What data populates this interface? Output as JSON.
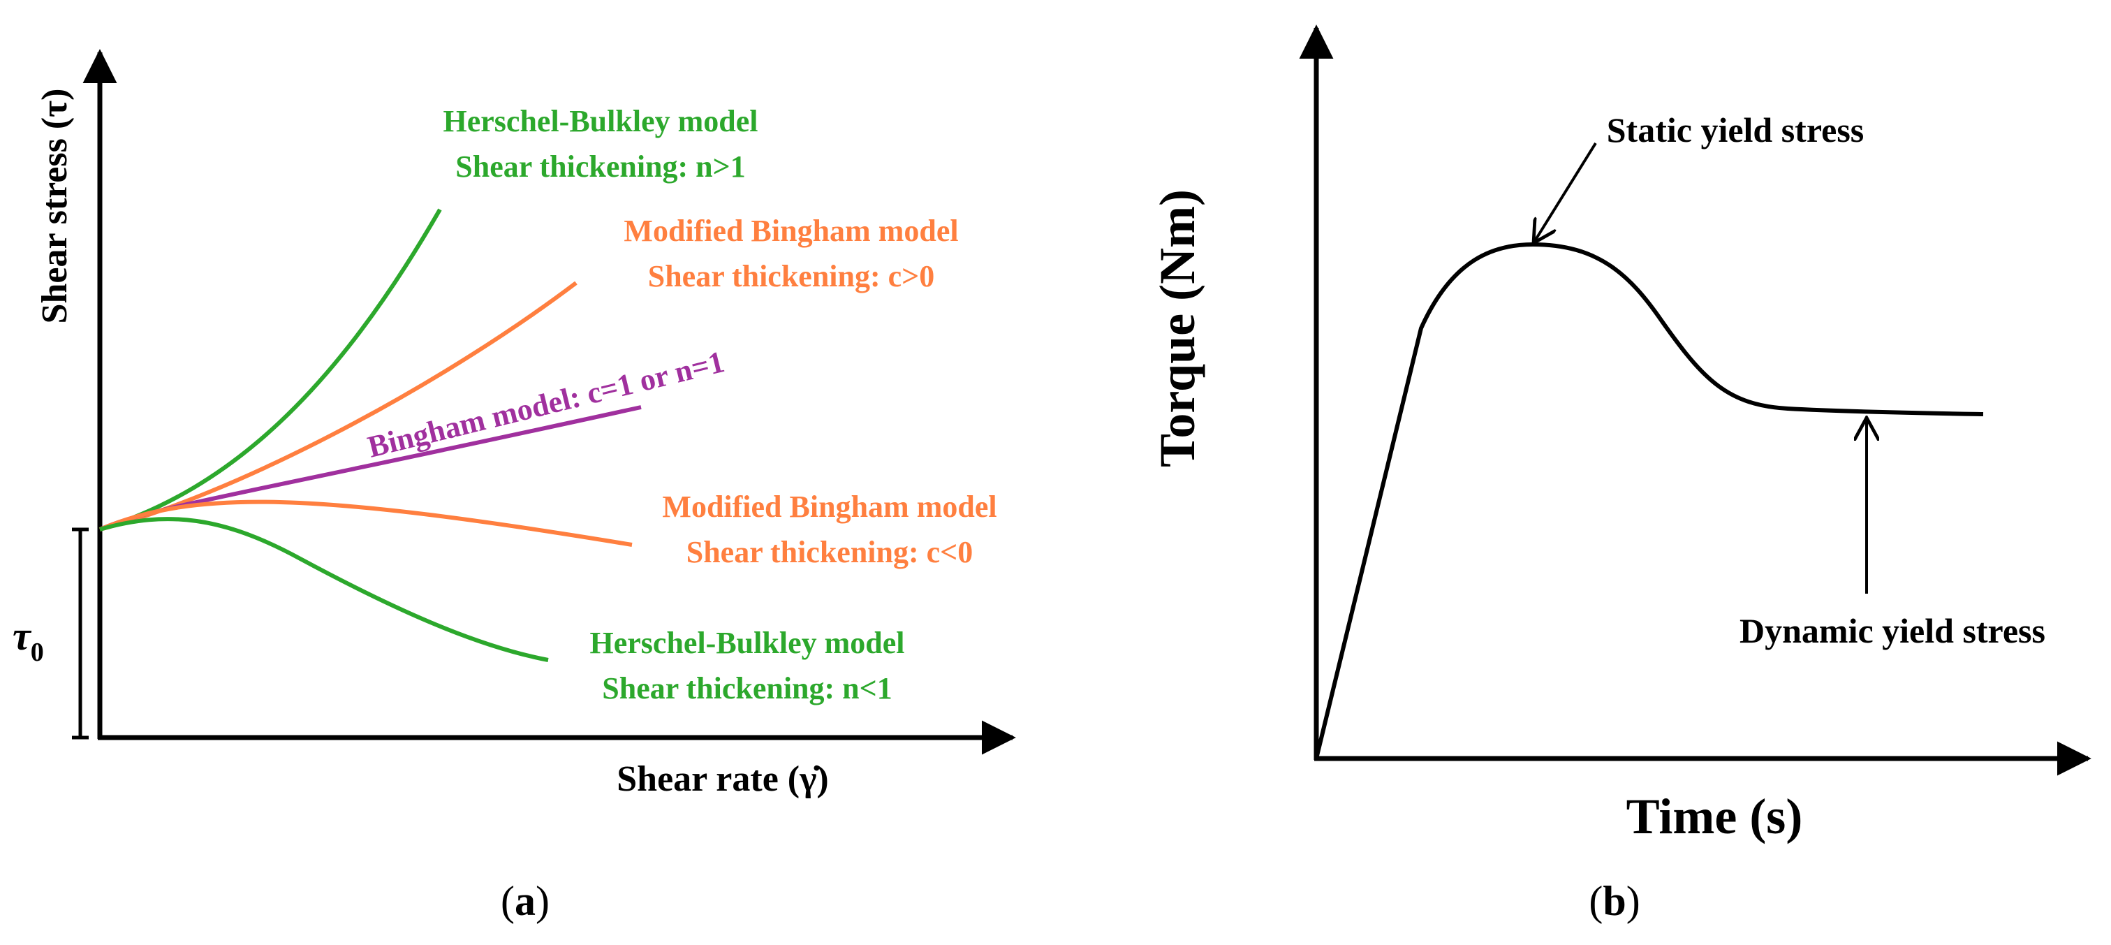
{
  "colors": {
    "green": "#2CA82C",
    "orange": "#FF7F3F",
    "purple": "#A0309E",
    "axis": "#000000"
  },
  "panel_a": {
    "label_open": "(",
    "label_letter": "a",
    "label_close": ")",
    "ylabel": "Shear stress (τ)",
    "xlabel": "Shear rate (γ̇)",
    "tau0": "τ",
    "tau0_sub": "0",
    "hb_upper": {
      "line1": "Herschel-Bulkley model",
      "line2": "Shear thickening: n>1"
    },
    "mb_upper": {
      "line1": "Modified Bingham model",
      "line2": "Shear thickening: c>0"
    },
    "bingham": "Bingham model: c=1 or n=1",
    "mb_lower": {
      "line1": "Modified Bingham model",
      "line2": "Shear thickening: c<0"
    },
    "hb_lower": {
      "line1": "Herschel-Bulkley model",
      "line2": "Shear thickening: n<1"
    }
  },
  "panel_b": {
    "label_open": "(",
    "label_letter": "b",
    "label_close": ")",
    "ylabel": "Torque (Nm)",
    "xlabel": "Time (s)",
    "static_label": "Static yield stress",
    "dynamic_label": "Dynamic yield stress"
  }
}
